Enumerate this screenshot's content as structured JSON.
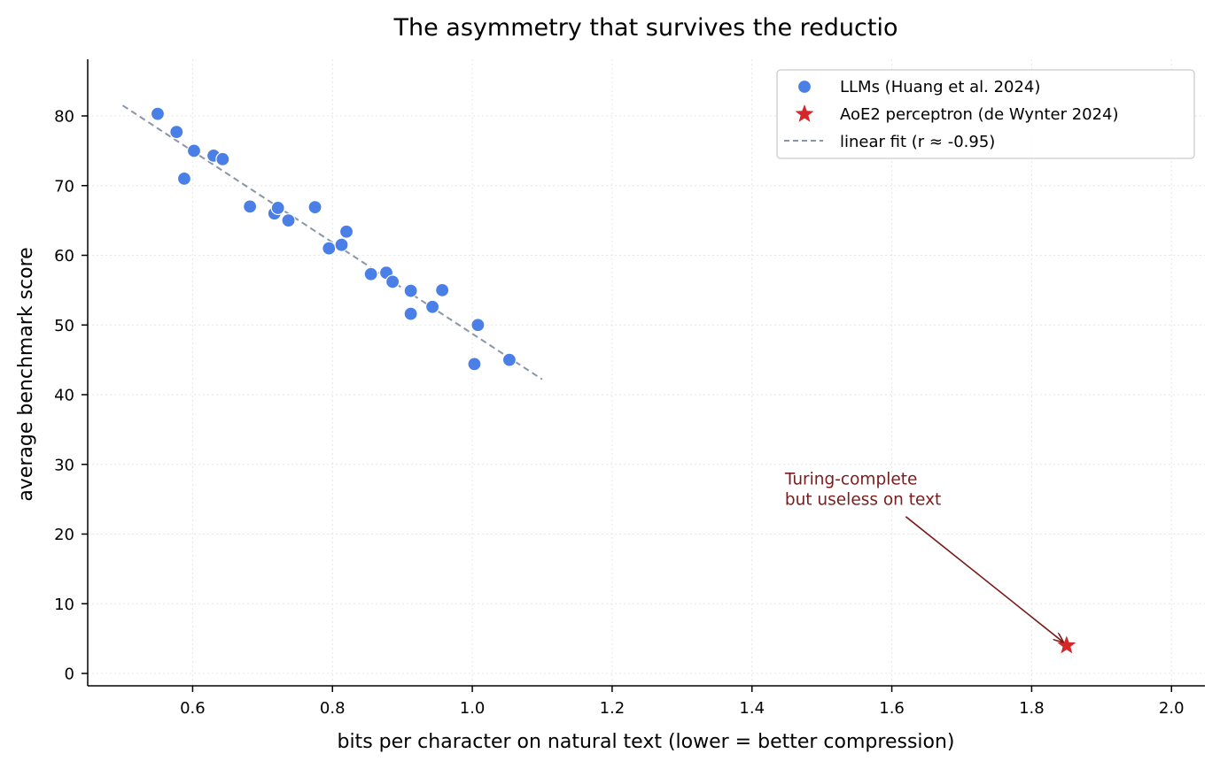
{
  "chart_data": {
    "type": "scatter",
    "title": "The asymmetry that survives the reductio",
    "xlabel": "bits per character on natural text (lower = better compression)",
    "ylabel": "average benchmark score",
    "xlim": [
      0.45,
      2.05
    ],
    "ylim": [
      -2,
      88
    ],
    "x_ticks": [
      "0.6",
      "0.8",
      "1.0",
      "1.2",
      "1.4",
      "1.6",
      "1.8",
      "2.0"
    ],
    "x_tick_values": [
      0.6,
      0.8,
      1.0,
      1.2,
      1.4,
      1.6,
      1.8,
      2.0
    ],
    "y_ticks": [
      "0",
      "10",
      "20",
      "30",
      "40",
      "50",
      "60",
      "70",
      "80"
    ],
    "y_tick_values": [
      0,
      10,
      20,
      30,
      40,
      50,
      60,
      70,
      80
    ],
    "grid": true,
    "legend_position": "top-right",
    "colors": {
      "llm": "#4a7fe8",
      "aoe": "#d62728",
      "fit": "#8a96a8",
      "annotation": "#7a1c1c"
    },
    "series": [
      {
        "name": "LLMs (Huang et al. 2024)",
        "marker": "circle",
        "points": [
          [
            0.55,
            80.3
          ],
          [
            0.577,
            77.7
          ],
          [
            0.602,
            75.0
          ],
          [
            0.588,
            71.0
          ],
          [
            0.63,
            74.3
          ],
          [
            0.643,
            73.8
          ],
          [
            0.682,
            67.0
          ],
          [
            0.717,
            66.0
          ],
          [
            0.722,
            66.8
          ],
          [
            0.737,
            65.0
          ],
          [
            0.775,
            66.9
          ],
          [
            0.795,
            61.0
          ],
          [
            0.813,
            61.5
          ],
          [
            0.82,
            63.4
          ],
          [
            0.855,
            57.3
          ],
          [
            0.877,
            57.5
          ],
          [
            0.886,
            56.2
          ],
          [
            0.912,
            54.9
          ],
          [
            0.912,
            51.6
          ],
          [
            0.943,
            52.6
          ],
          [
            0.957,
            55.0
          ],
          [
            1.003,
            44.4
          ],
          [
            1.008,
            50.0
          ],
          [
            1.053,
            45.0
          ]
        ]
      },
      {
        "name": "AoE2 perceptron (de Wynter 2024)",
        "marker": "star",
        "points": [
          [
            1.85,
            4.0
          ]
        ]
      },
      {
        "name": "linear fit (r ≈ -0.95)",
        "marker": "dashed-line",
        "points": [
          [
            0.5,
            81.5
          ],
          [
            1.1,
            42.2
          ]
        ]
      }
    ],
    "annotation": {
      "lines": [
        "Turing-complete",
        "but useless on text"
      ],
      "text_anchor": [
        1.447,
        24.2
      ],
      "arrow_from": [
        1.62,
        22.5
      ],
      "arrow_to": [
        1.845,
        4.5
      ]
    }
  }
}
